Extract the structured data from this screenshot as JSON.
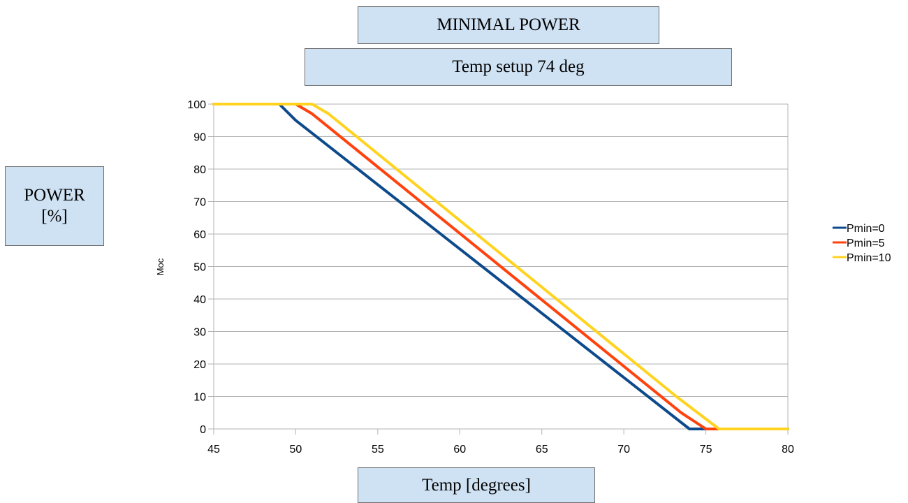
{
  "boxes": {
    "title": "MINIMAL POWER",
    "subtitle": "Temp setup 74 deg",
    "ylabel_line1": "POWER",
    "ylabel_line2": "[%]",
    "xlabel": "Temp [degrees]"
  },
  "chart_data": {
    "type": "line",
    "title": "",
    "ylabel": "Moc",
    "xlim": [
      45,
      80
    ],
    "ylim": [
      0,
      100
    ],
    "xticks": [
      45,
      50,
      55,
      60,
      65,
      70,
      75,
      80
    ],
    "yticks": [
      0,
      10,
      20,
      30,
      40,
      50,
      60,
      70,
      80,
      90,
      100
    ],
    "grid": "horizontal",
    "legend_position": "right",
    "series": [
      {
        "name": "Pmin=0",
        "color": "#0d4a8c",
        "points": [
          [
            45,
            100
          ],
          [
            49,
            100
          ],
          [
            50,
            95
          ],
          [
            74,
            0
          ],
          [
            80,
            0
          ]
        ]
      },
      {
        "name": "Pmin=5",
        "color": "#ff420e",
        "points": [
          [
            45,
            100
          ],
          [
            50,
            100
          ],
          [
            51,
            97
          ],
          [
            73.5,
            5
          ],
          [
            75,
            0
          ],
          [
            80,
            0
          ]
        ]
      },
      {
        "name": "Pmin=10",
        "color": "#ffd320",
        "points": [
          [
            45,
            100
          ],
          [
            51,
            100
          ],
          [
            52,
            97
          ],
          [
            73.2,
            10
          ],
          [
            75.8,
            0
          ],
          [
            80,
            0
          ]
        ]
      }
    ]
  }
}
